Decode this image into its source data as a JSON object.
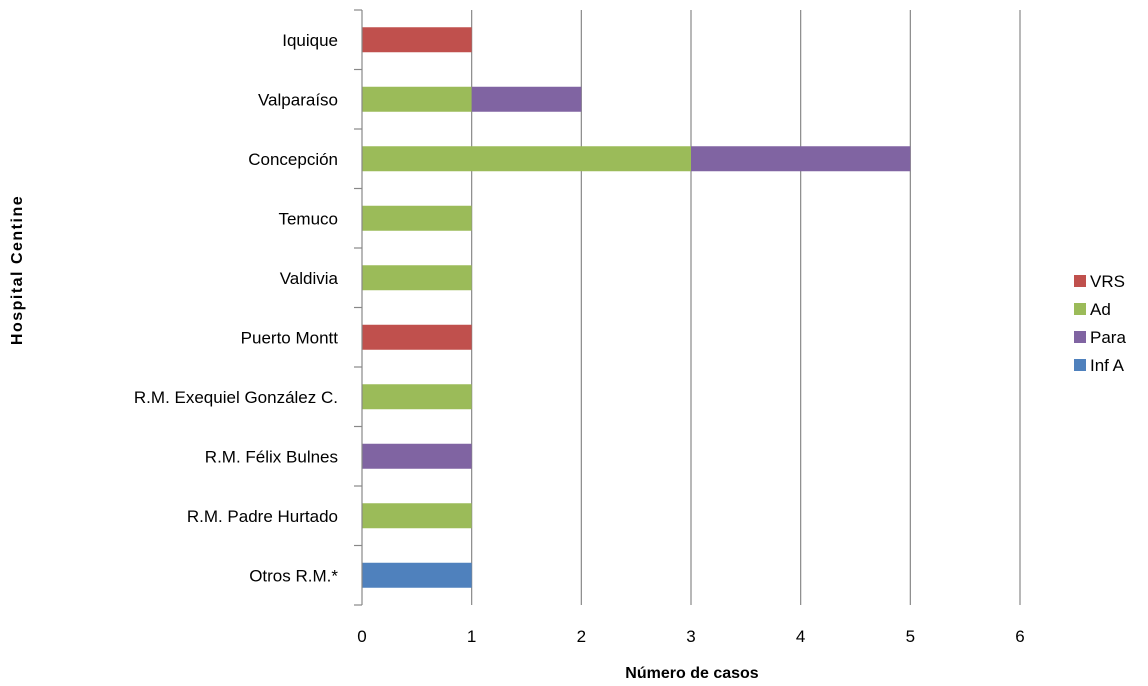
{
  "chart_data": {
    "type": "bar",
    "orientation": "horizontal",
    "stacked": true,
    "title": "",
    "xlabel": "Número de casos",
    "ylabel": "Hospital Centine",
    "xlim": [
      0,
      6
    ],
    "xticks": [
      "0",
      "1",
      "2",
      "3",
      "4",
      "5",
      "6"
    ],
    "grid": "vertical",
    "legend_position": "right",
    "categories": [
      "Iquique",
      "Valparaíso",
      "Concepción",
      "Temuco",
      "Valdivia",
      "Puerto Montt",
      "R.M. Exequiel González C.",
      "R.M.  Félix Bulnes",
      "R.M. Padre Hurtado",
      "Otros R.M.*"
    ],
    "series": [
      {
        "name": "VRS",
        "color": "#c0504d",
        "values": [
          1,
          0,
          0,
          0,
          0,
          1,
          0,
          0,
          0,
          0
        ]
      },
      {
        "name": "Ad",
        "color": "#9bbb59",
        "values": [
          0,
          1,
          3,
          1,
          1,
          0,
          1,
          0,
          1,
          0
        ]
      },
      {
        "name": "Para",
        "color": "#8064a2",
        "values": [
          0,
          1,
          2,
          0,
          0,
          0,
          0,
          1,
          0,
          0
        ]
      },
      {
        "name": "Inf A",
        "color": "#4f81bd",
        "values": [
          0,
          0,
          0,
          0,
          0,
          0,
          0,
          0,
          0,
          1
        ]
      }
    ]
  }
}
